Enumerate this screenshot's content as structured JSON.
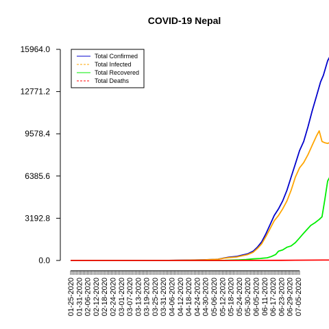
{
  "chart_data": {
    "type": "line",
    "title": "COVID-19 Nepal",
    "xlabel": "",
    "ylabel": "",
    "ylim": [
      0,
      15964.0
    ],
    "yticks": [
      "0.0",
      "3192.8",
      "6385.6",
      "9578.4",
      "12771.2",
      "15964.0"
    ],
    "ytick_values": [
      0,
      3192.8,
      6385.6,
      9578.4,
      12771.2,
      15964.0
    ],
    "xticks": [
      "01-25-2020",
      "01-31-2020",
      "02-06-2020",
      "02-12-2020",
      "02-18-2020",
      "02-24-2020",
      "03-01-2020",
      "03-07-2020",
      "03-13-2020",
      "03-19-2020",
      "03-25-2020",
      "03-31-2020",
      "04-06-2020",
      "04-12-2020",
      "04-18-2020",
      "04-24-2020",
      "04-30-2020",
      "05-06-2020",
      "05-12-2020",
      "05-18-2020",
      "05-24-2020",
      "05-30-2020",
      "06-05-2020",
      "06-11-2020",
      "06-17-2020",
      "06-23-2020",
      "06-29-2020",
      "07-05-2020"
    ],
    "x_start": "01-25-2020",
    "x_end": "07-06-2020",
    "grid": false,
    "legend": "top-left",
    "series": [
      {
        "name": "Total Confirmed",
        "color": "#0000cc",
        "dash": "solid",
        "points": [
          [
            0,
            0
          ],
          [
            70,
            5
          ],
          [
            85,
            30
          ],
          [
            95,
            50
          ],
          [
            100,
            75
          ],
          [
            105,
            100
          ],
          [
            110,
            200
          ],
          [
            113,
            250
          ],
          [
            118,
            300
          ],
          [
            122,
            400
          ],
          [
            126,
            500
          ],
          [
            130,
            700
          ],
          [
            133,
            1000
          ],
          [
            136,
            1400
          ],
          [
            139,
            2000
          ],
          [
            142,
            2700
          ],
          [
            145,
            3400
          ],
          [
            148,
            3900
          ],
          [
            151,
            4500
          ],
          [
            154,
            5300
          ],
          [
            157,
            6300
          ],
          [
            160,
            7300
          ],
          [
            163,
            8300
          ],
          [
            166,
            9000
          ],
          [
            169,
            10100
          ],
          [
            172,
            11300
          ],
          [
            175,
            12400
          ],
          [
            178,
            13500
          ],
          [
            180,
            14000
          ],
          [
            183,
            15100
          ],
          [
            185,
            15500
          ],
          [
            188,
            15964
          ]
        ]
      },
      {
        "name": "Total Infected",
        "color": "#ffa500",
        "dash": "dashed",
        "points": [
          [
            0,
            0
          ],
          [
            70,
            5
          ],
          [
            85,
            28
          ],
          [
            95,
            45
          ],
          [
            100,
            68
          ],
          [
            105,
            90
          ],
          [
            110,
            180
          ],
          [
            113,
            220
          ],
          [
            118,
            260
          ],
          [
            122,
            350
          ],
          [
            126,
            440
          ],
          [
            130,
            620
          ],
          [
            133,
            900
          ],
          [
            136,
            1250
          ],
          [
            139,
            1800
          ],
          [
            142,
            2400
          ],
          [
            145,
            3000
          ],
          [
            148,
            3400
          ],
          [
            151,
            3900
          ],
          [
            154,
            4500
          ],
          [
            157,
            5300
          ],
          [
            160,
            6300
          ],
          [
            163,
            7000
          ],
          [
            166,
            7400
          ],
          [
            169,
            8000
          ],
          [
            172,
            8700
          ],
          [
            175,
            9400
          ],
          [
            177,
            9800
          ],
          [
            179,
            9000
          ],
          [
            181,
            8900
          ],
          [
            183,
            8850
          ],
          [
            185,
            8950
          ],
          [
            187,
            8900
          ]
        ]
      },
      {
        "name": "Total Recovered",
        "color": "#00ee00",
        "dash": "solid",
        "points": [
          [
            0,
            0
          ],
          [
            110,
            10
          ],
          [
            120,
            40
          ],
          [
            125,
            70
          ],
          [
            130,
            120
          ],
          [
            135,
            150
          ],
          [
            140,
            200
          ],
          [
            143,
            300
          ],
          [
            146,
            450
          ],
          [
            148,
            700
          ],
          [
            151,
            800
          ],
          [
            154,
            1000
          ],
          [
            157,
            1100
          ],
          [
            160,
            1350
          ],
          [
            163,
            1700
          ],
          [
            165,
            1950
          ],
          [
            168,
            2300
          ],
          [
            171,
            2650
          ],
          [
            174,
            2850
          ],
          [
            177,
            3100
          ],
          [
            179,
            3300
          ],
          [
            181,
            4600
          ],
          [
            183,
            6000
          ],
          [
            185,
            6400
          ],
          [
            187,
            6700
          ],
          [
            188,
            6900
          ]
        ]
      },
      {
        "name": "Total Deaths",
        "color": "#ff0000",
        "dash": "dashed",
        "points": [
          [
            0,
            0
          ],
          [
            110,
            1
          ],
          [
            130,
            5
          ],
          [
            150,
            10
          ],
          [
            160,
            20
          ],
          [
            170,
            25
          ],
          [
            180,
            30
          ],
          [
            188,
            36
          ]
        ]
      }
    ]
  }
}
